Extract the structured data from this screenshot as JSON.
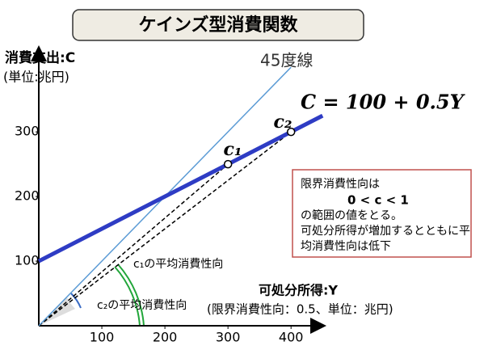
{
  "chart_data": {
    "type": "line",
    "title": "ケインズ型消費関数",
    "y_label": "消費支出:C",
    "y_unit": "(単位:兆円)",
    "x_label": "可処分所得:Y",
    "x_note": "(限界消費性向：0.5、単位：兆円)",
    "series": [
      {
        "name": "45度線",
        "color": "#5b9bd5",
        "x": [
          0,
          400
        ],
        "values": [
          0,
          400
        ]
      },
      {
        "name": "C = 100 + 0.5Y",
        "color": "#2e3cc4",
        "x": [
          0,
          450
        ],
        "values": [
          100,
          325
        ]
      }
    ],
    "points": [
      {
        "label": "c₁",
        "x": 300,
        "y": 250,
        "note": "c₁の平均消費性向"
      },
      {
        "label": "c₂",
        "x": 400,
        "y": 300,
        "note": "c₂の平均消費性向"
      }
    ],
    "info_box": [
      "限界消費性向は",
      "0 < c < 1",
      "の範囲の値をとる。",
      "可処分所得が増加するとともに平",
      "均消費性向は低下"
    ],
    "xlim": [
      0,
      451
    ],
    "ylim": [
      0,
      429
    ],
    "xticks": [
      100,
      200,
      300,
      400
    ],
    "yticks": [
      100,
      200,
      300
    ]
  }
}
